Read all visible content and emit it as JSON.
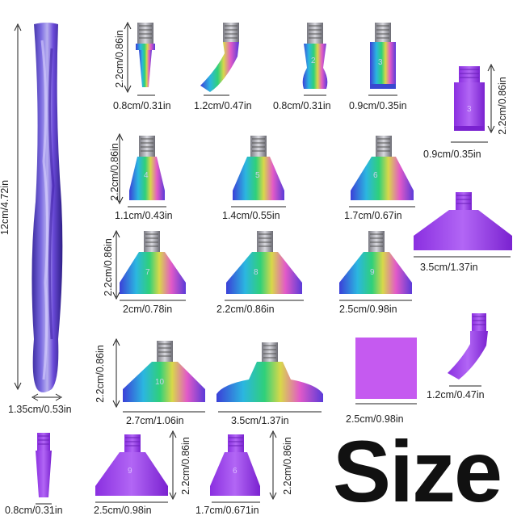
{
  "headline": "Size",
  "pen": {
    "length": "12cm/4.72in",
    "width": "1.35cm/0.53in"
  },
  "heads": [
    {
      "id": "h1",
      "number": "",
      "width": "0.8cm/0.31in",
      "height": "2.2cm/0.86in",
      "material": "metal"
    },
    {
      "id": "h2",
      "number": "",
      "width": "1.2cm/0.47in",
      "height": "",
      "material": "metal"
    },
    {
      "id": "h3",
      "number": "2",
      "width": "0.8cm/0.31in",
      "height": "",
      "material": "metal"
    },
    {
      "id": "h4",
      "number": "3",
      "width": "0.9cm/0.35in",
      "height": "",
      "material": "metal"
    },
    {
      "id": "h5",
      "number": "3",
      "width": "0.9cm/0.35in",
      "height": "2.2cm/0.86in",
      "material": "plastic"
    },
    {
      "id": "h6",
      "number": "4",
      "width": "1.1cm/0.43in",
      "height": "2.2cm/0.86in",
      "material": "metal"
    },
    {
      "id": "h7",
      "number": "5",
      "width": "1.4cm/0.55in",
      "height": "",
      "material": "metal"
    },
    {
      "id": "h8",
      "number": "6",
      "width": "1.7cm/0.67in",
      "height": "",
      "material": "metal"
    },
    {
      "id": "h9",
      "number": "7",
      "width": "2cm/0.78in",
      "height": "2.2cm/0.86in",
      "material": "metal"
    },
    {
      "id": "h10",
      "number": "8",
      "width": "2.2cm/0.86in",
      "height": "",
      "material": "metal"
    },
    {
      "id": "h11",
      "number": "9",
      "width": "2.5cm/0.98in",
      "height": "",
      "material": "metal"
    },
    {
      "id": "h12",
      "number": "",
      "width": "3.5cm/1.37in",
      "height": "",
      "material": "plastic"
    },
    {
      "id": "h13",
      "number": "10",
      "width": "2.7cm/1.06in",
      "height": "2.2cm/0.86in",
      "material": "metal"
    },
    {
      "id": "h14",
      "number": "",
      "width": "3.5cm/1.37in",
      "height": "",
      "material": "metal"
    },
    {
      "id": "h15",
      "number": "",
      "width": "2.5cm/0.98in",
      "height": "",
      "material": "plastic-square"
    },
    {
      "id": "h16",
      "number": "",
      "width": "1.2cm/0.47in",
      "height": "",
      "material": "plastic"
    },
    {
      "id": "h17",
      "number": "",
      "width": "0.8cm/0.31in",
      "height": "",
      "material": "plastic"
    },
    {
      "id": "h18",
      "number": "9",
      "width": "2.5cm/0.98in",
      "height": "2.2cm/0.86in",
      "material": "plastic"
    },
    {
      "id": "h19",
      "number": "6",
      "width": "1.7cm/0.671in",
      "height": "2.2cm/0.86in",
      "material": "plastic"
    }
  ],
  "colors": {
    "purple": "#9b3fe8",
    "purple_dark": "#6d1fc0",
    "square": "#c55af0",
    "metal_blue": "#2f6fe0",
    "metal_green": "#28c08a",
    "metal_pink": "#d04bd0"
  }
}
